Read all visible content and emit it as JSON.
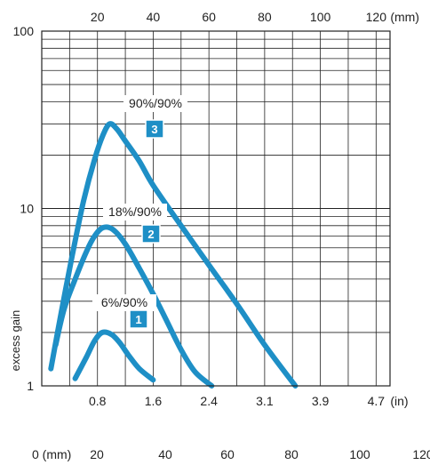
{
  "chart_data": {
    "type": "line",
    "title": "",
    "ylabel": "excess gain",
    "y_scale": "log",
    "ylim": [
      1,
      100
    ],
    "y_ticks": [
      "1",
      "10",
      "100"
    ],
    "x_top_unit": "(mm)",
    "x_top_ticks": [
      "20",
      "40",
      "60",
      "80",
      "100",
      "120"
    ],
    "x_bottom_unit": "(in)",
    "x_bottom_ticks": [
      "0.8",
      "1.6",
      "2.4",
      "3.1",
      "3.9",
      "4.7"
    ],
    "x_extra_unit": "0 (mm)",
    "x_extra_ticks": [
      "20",
      "40",
      "60",
      "80",
      "100",
      "120"
    ],
    "grid": true,
    "color": "#1e8fc6",
    "series": [
      {
        "name": "6%/90%",
        "badge": "1",
        "x": [
          12,
          16,
          19,
          21.7,
          25,
          28,
          31,
          35,
          40
        ],
        "y": [
          1.1,
          1.45,
          1.8,
          2.0,
          1.95,
          1.75,
          1.5,
          1.25,
          1.08
        ]
      },
      {
        "name": "18%/90%",
        "badge": "2",
        "x": [
          5,
          8,
          12,
          16,
          19,
          22,
          25.6,
          30,
          35,
          40,
          45,
          50,
          55,
          61
        ],
        "y": [
          1.7,
          2.7,
          4.0,
          5.7,
          7.0,
          7.8,
          7.6,
          6.3,
          4.6,
          3.3,
          2.3,
          1.6,
          1.2,
          1.0
        ]
      },
      {
        "name": "90%/90%",
        "badge": "3",
        "x": [
          3.3,
          7,
          11,
          15,
          19,
          22,
          24.4,
          27,
          30,
          35,
          40,
          50,
          60,
          70,
          80,
          91
        ],
        "y": [
          1.25,
          2.6,
          5.5,
          11,
          19,
          26,
          30,
          28,
          24,
          18.5,
          13.5,
          8.0,
          4.8,
          2.9,
          1.7,
          1.0
        ]
      }
    ]
  }
}
